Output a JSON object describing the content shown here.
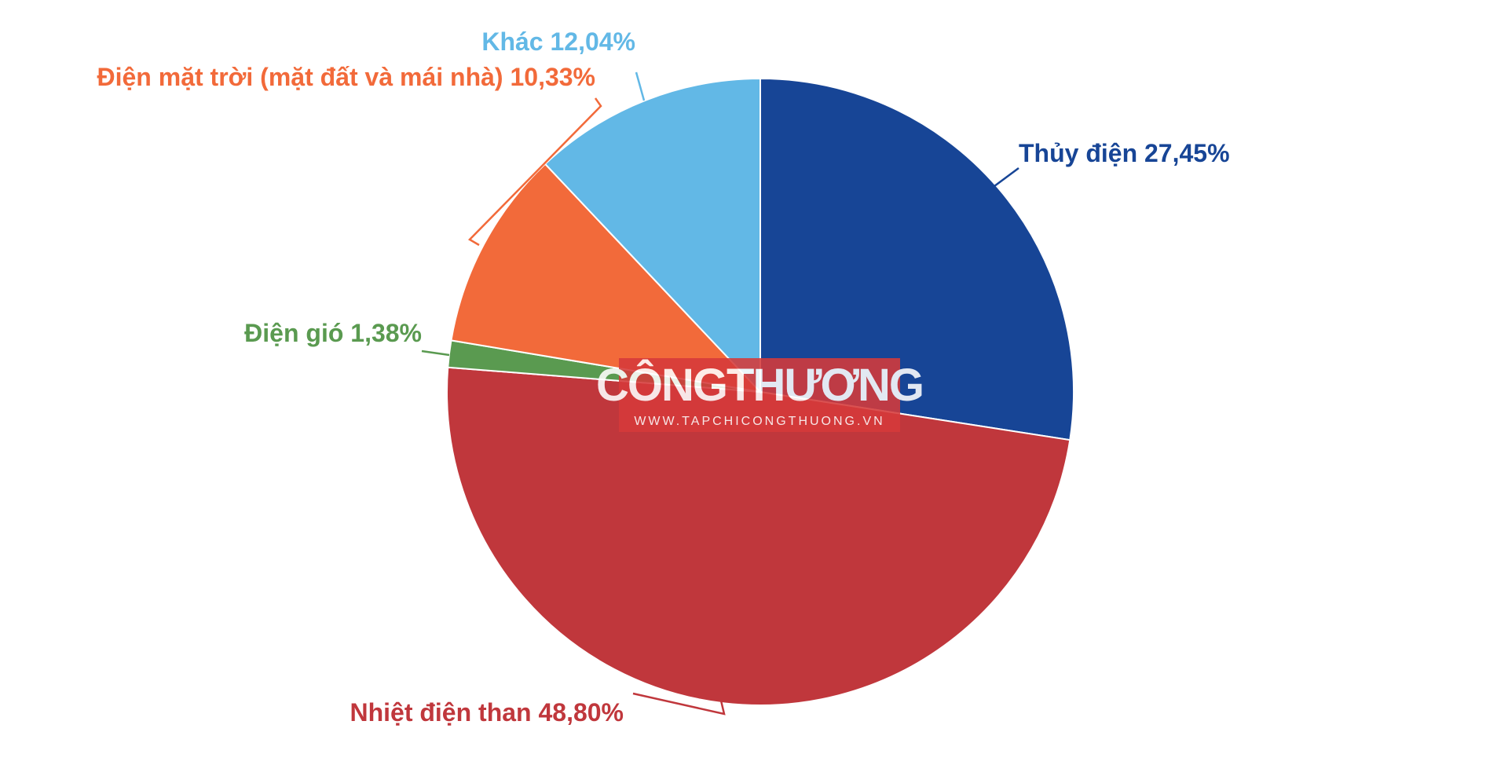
{
  "chart_data": {
    "type": "pie",
    "categories": [
      "Thủy điện",
      "Nhiệt điện than",
      "Điện gió",
      "Điện mặt trời (mặt đất và mái nhà)",
      "Khác"
    ],
    "values": [
      27.45,
      48.8,
      1.38,
      10.33,
      12.04
    ],
    "value_labels": [
      "27,45%",
      "48,80%",
      "1,38%",
      "10,33%",
      "12,04%"
    ],
    "colors": [
      "#174596",
      "#c0373c",
      "#5a9a50",
      "#f26a3a",
      "#62b8e6"
    ]
  },
  "watermark": {
    "title": "CÔNGTHƯƠNG",
    "url": "WWW.TAPCHICONGTHUONG.VN"
  }
}
